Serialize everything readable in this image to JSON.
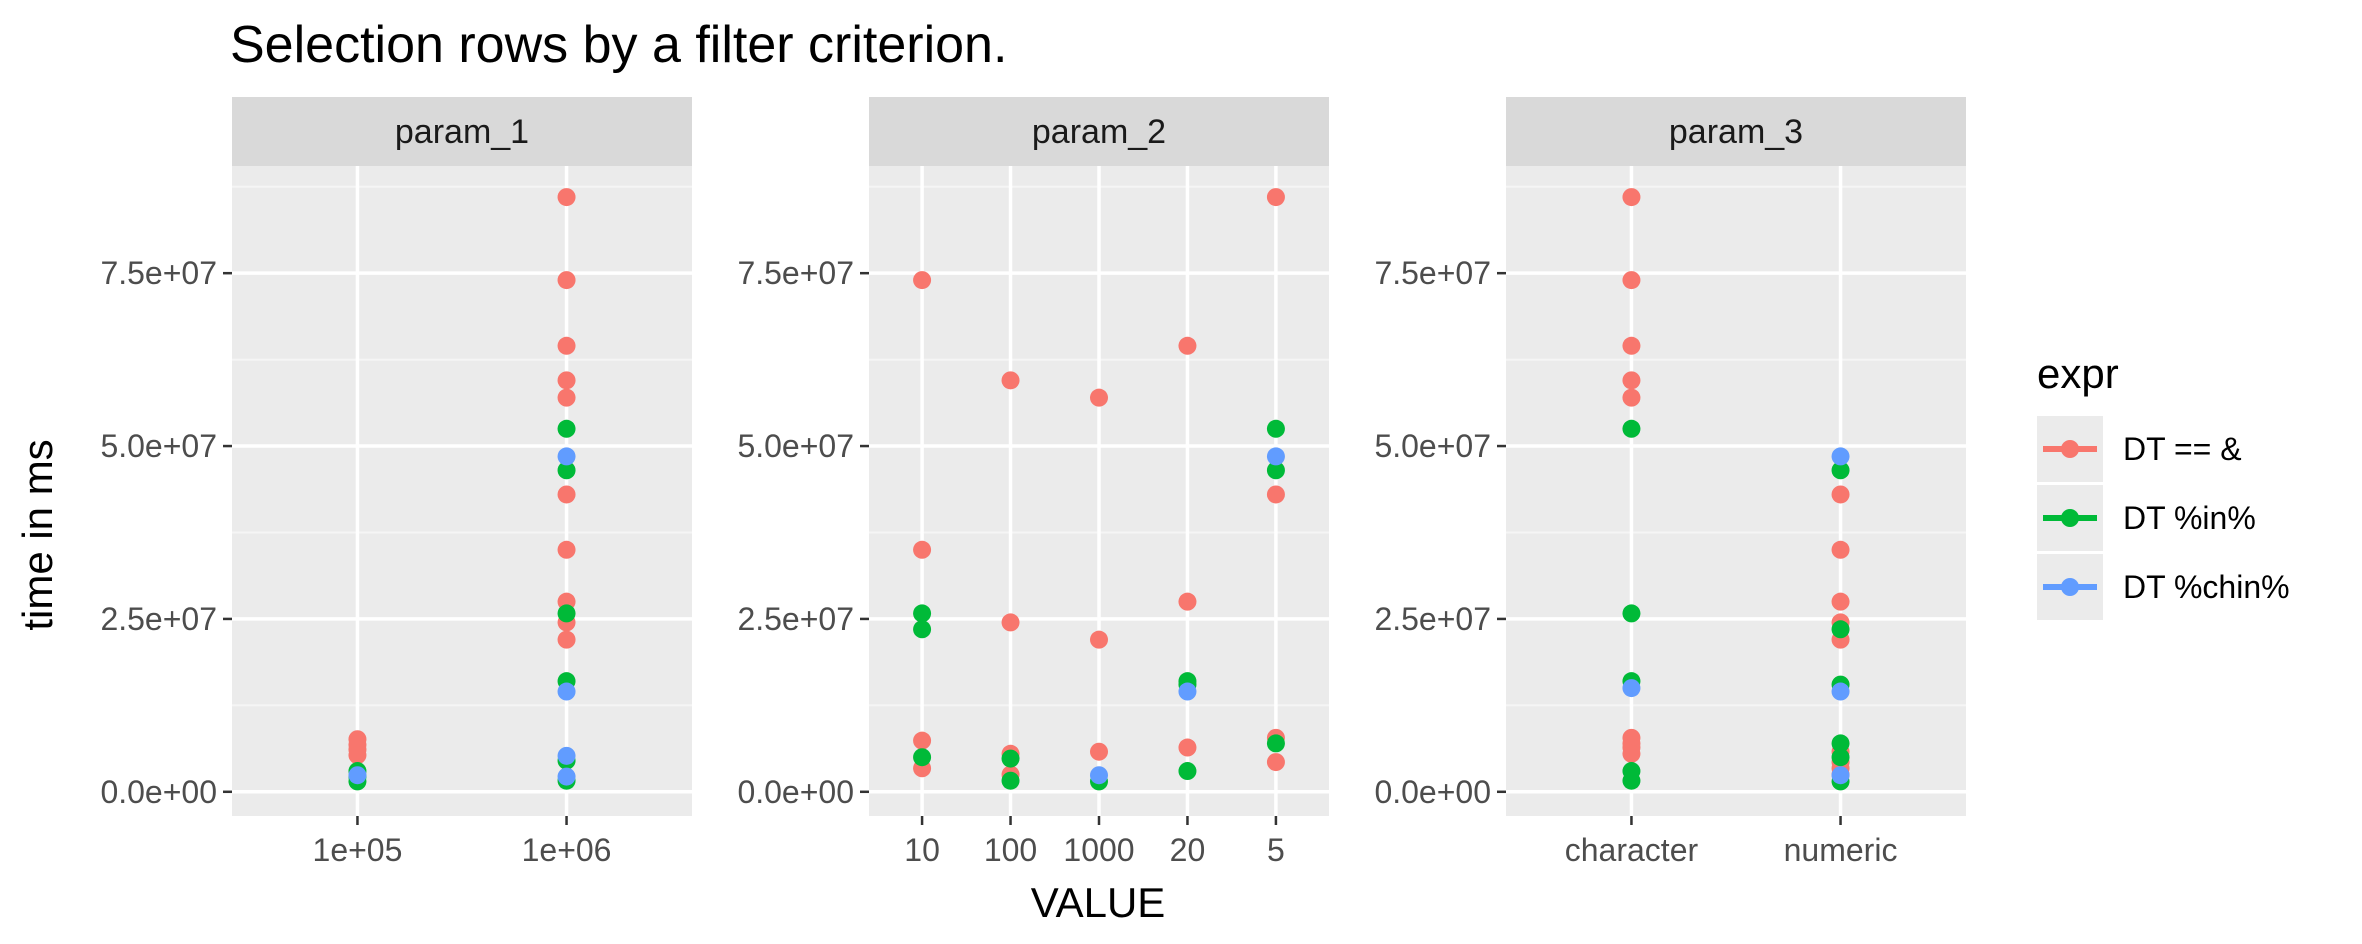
{
  "chart_data": {
    "type": "scatter",
    "title": "Selection rows by a filter criterion.",
    "xlabel": "VALUE",
    "ylabel": "time in ms",
    "ylim": [
      -3500000,
      90500000
    ],
    "y_ticks": [
      0,
      25000000,
      50000000,
      75000000
    ],
    "y_tick_labels": [
      "0.0e+00",
      "2.5e+07",
      "5.0e+07",
      "7.5e+07"
    ],
    "grid": true,
    "legend": {
      "title": "expr",
      "position": "right",
      "entries": [
        {
          "label": "DT == &",
          "color": "#F8766D"
        },
        {
          "label": "DT %in%",
          "color": "#00BA38"
        },
        {
          "label": "DT %chin%",
          "color": "#619CFF"
        }
      ]
    },
    "panels": [
      {
        "strip": "param_1",
        "categories": [
          "1e+05",
          "1e+06"
        ],
        "series": [
          {
            "name": "DT == &",
            "color": "#F8766D",
            "points": [
              [
                "1e+05",
                7600000
              ],
              [
                "1e+05",
                6800000
              ],
              [
                "1e+05",
                6100000
              ],
              [
                "1e+05",
                5300000
              ],
              [
                "1e+06",
                86000000
              ],
              [
                "1e+06",
                74000000
              ],
              [
                "1e+06",
                64500000
              ],
              [
                "1e+06",
                59500000
              ],
              [
                "1e+06",
                57000000
              ],
              [
                "1e+06",
                43000000
              ],
              [
                "1e+06",
                35000000
              ],
              [
                "1e+06",
                27500000
              ],
              [
                "1e+06",
                24500000
              ],
              [
                "1e+06",
                22000000
              ]
            ]
          },
          {
            "name": "DT %in%",
            "color": "#00BA38",
            "points": [
              [
                "1e+05",
                3000000
              ],
              [
                "1e+05",
                2200000
              ],
              [
                "1e+05",
                1500000
              ],
              [
                "1e+06",
                52500000
              ],
              [
                "1e+06",
                46500000
              ],
              [
                "1e+06",
                25800000
              ],
              [
                "1e+06",
                16000000
              ],
              [
                "1e+06",
                4500000
              ],
              [
                "1e+06",
                1600000
              ]
            ]
          },
          {
            "name": "DT %chin%",
            "color": "#619CFF",
            "points": [
              [
                "1e+05",
                2400000
              ],
              [
                "1e+06",
                48500000
              ],
              [
                "1e+06",
                14500000
              ],
              [
                "1e+06",
                5200000
              ],
              [
                "1e+06",
                2200000
              ]
            ]
          }
        ]
      },
      {
        "strip": "param_2",
        "categories": [
          "10",
          "100",
          "1000",
          "20",
          "5"
        ],
        "series": [
          {
            "name": "DT == &",
            "color": "#F8766D",
            "points": [
              [
                "10",
                74000000
              ],
              [
                "10",
                35000000
              ],
              [
                "10",
                7400000
              ],
              [
                "10",
                3400000
              ],
              [
                "100",
                59500000
              ],
              [
                "100",
                24500000
              ],
              [
                "100",
                5500000
              ],
              [
                "100",
                2500000
              ],
              [
                "1000",
                57000000
              ],
              [
                "1000",
                22000000
              ],
              [
                "1000",
                5800000
              ],
              [
                "20",
                64500000
              ],
              [
                "20",
                27500000
              ],
              [
                "20",
                6400000
              ],
              [
                "5",
                86000000
              ],
              [
                "5",
                43000000
              ],
              [
                "5",
                7800000
              ],
              [
                "5",
                4300000
              ]
            ]
          },
          {
            "name": "DT %in%",
            "color": "#00BA38",
            "points": [
              [
                "10",
                25800000
              ],
              [
                "10",
                23500000
              ],
              [
                "10",
                5000000
              ],
              [
                "100",
                4800000
              ],
              [
                "100",
                1600000
              ],
              [
                "1000",
                1500000
              ],
              [
                "20",
                16000000
              ],
              [
                "20",
                15500000
              ],
              [
                "20",
                3000000
              ],
              [
                "5",
                52500000
              ],
              [
                "5",
                46500000
              ],
              [
                "5",
                7000000
              ]
            ]
          },
          {
            "name": "DT %chin%",
            "color": "#619CFF",
            "points": [
              [
                "1000",
                2400000
              ],
              [
                "20",
                14500000
              ],
              [
                "5",
                48500000
              ]
            ]
          }
        ]
      },
      {
        "strip": "param_3",
        "categories": [
          "character",
          "numeric"
        ],
        "series": [
          {
            "name": "DT == &",
            "color": "#F8766D",
            "points": [
              [
                "character",
                86000000
              ],
              [
                "character",
                74000000
              ],
              [
                "character",
                64500000
              ],
              [
                "character",
                59500000
              ],
              [
                "character",
                57000000
              ],
              [
                "character",
                7800000
              ],
              [
                "character",
                7000000
              ],
              [
                "character",
                6400000
              ],
              [
                "character",
                5500000
              ],
              [
                "numeric",
                43000000
              ],
              [
                "numeric",
                35000000
              ],
              [
                "numeric",
                27500000
              ],
              [
                "numeric",
                24500000
              ],
              [
                "numeric",
                22000000
              ],
              [
                "numeric",
                5800000
              ],
              [
                "numeric",
                4300000
              ],
              [
                "numeric",
                3400000
              ],
              [
                "numeric",
                2500000
              ]
            ]
          },
          {
            "name": "DT %in%",
            "color": "#00BA38",
            "points": [
              [
                "character",
                52500000
              ],
              [
                "character",
                25800000
              ],
              [
                "character",
                16000000
              ],
              [
                "character",
                3000000
              ],
              [
                "character",
                1600000
              ],
              [
                "numeric",
                46500000
              ],
              [
                "numeric",
                23500000
              ],
              [
                "numeric",
                15500000
              ],
              [
                "numeric",
                7000000
              ],
              [
                "numeric",
                5000000
              ],
              [
                "numeric",
                1500000
              ]
            ]
          },
          {
            "name": "DT %chin%",
            "color": "#619CFF",
            "points": [
              [
                "character",
                15000000
              ],
              [
                "numeric",
                48500000
              ],
              [
                "numeric",
                14500000
              ],
              [
                "numeric",
                2400000
              ]
            ]
          }
        ]
      }
    ]
  }
}
